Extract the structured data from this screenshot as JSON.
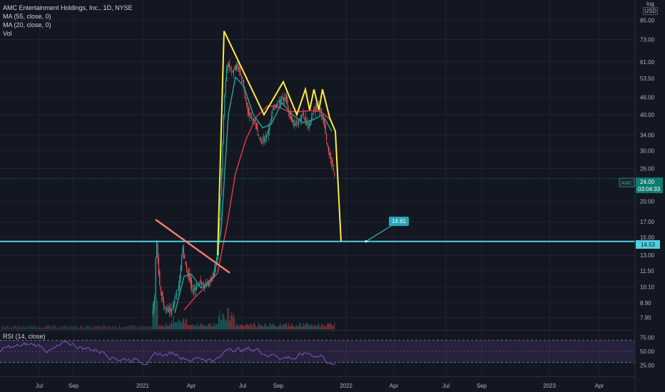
{
  "legend": {
    "title": "AMC Entertainment Holdings, Inc., 1D, NYSE",
    "ma55": "MA (55, close, 0)",
    "ma20": "MA (20, close, 0)",
    "vol": "Vol"
  },
  "rsi_label": "RSI (14, close)",
  "scale_mode": "log",
  "currency": "USD",
  "price_badge": {
    "symbol": "AMC",
    "price": "24.00",
    "countdown": "03:04:33"
  },
  "level_badge": {
    "price": "14.53"
  },
  "callout": {
    "text": "14.61"
  },
  "colors": {
    "background": "#131722",
    "grid": "#2a2e39",
    "pattern_line": "#ffeb3b",
    "trend_line": "#ef7a6a",
    "support_line": "#4dd0e1",
    "ma55": "#f23645",
    "ma20": "#26a69a",
    "rsi": "#7e57c2",
    "up": "#26a69a",
    "down": "#ef5350"
  },
  "chart_data": {
    "type": "candlestick",
    "y_scale": "log",
    "y_axis_ticks": [
      "85.00",
      "73.00",
      "61.00",
      "53.50",
      "46.00",
      "40.00",
      "34.00",
      "30.00",
      "26.00",
      "20.00",
      "17.00",
      "15.00",
      "13.00",
      "11.50",
      "10.10",
      "8.90",
      "7.90"
    ],
    "y_axis_tick_values": [
      85,
      73,
      61,
      53.5,
      46,
      40,
      34,
      30,
      26,
      20,
      17,
      15,
      13,
      11.5,
      10.1,
      8.9,
      7.9
    ],
    "x_axis_labels": [
      "Jul",
      "Sep",
      "2021",
      "Apr",
      "Jul",
      "Sep",
      "2022",
      "Apr",
      "Jul",
      "Sep",
      "2023",
      "Apr"
    ],
    "ylim": [
      7.2,
      100
    ],
    "current_price": 24.0,
    "horizontal_level": 14.53,
    "callout_value": 14.61,
    "price_path": [
      {
        "t": 214,
        "close": 8.2
      },
      {
        "t": 217,
        "close": 9.5
      },
      {
        "t": 219,
        "close": 15.5
      },
      {
        "t": 223,
        "close": 10.5
      },
      {
        "t": 230,
        "close": 8.5
      },
      {
        "t": 240,
        "close": 8.3
      },
      {
        "t": 250,
        "close": 10.0
      },
      {
        "t": 256,
        "close": 13.8
      },
      {
        "t": 262,
        "close": 11.5
      },
      {
        "t": 270,
        "close": 9.8
      },
      {
        "t": 280,
        "close": 10.5
      },
      {
        "t": 290,
        "close": 10.2
      },
      {
        "t": 298,
        "close": 11.0
      },
      {
        "t": 305,
        "close": 12.8
      },
      {
        "t": 309,
        "close": 20.0
      },
      {
        "t": 314,
        "close": 44.0
      },
      {
        "t": 318,
        "close": 60.0
      },
      {
        "t": 325,
        "close": 56.0
      },
      {
        "t": 332,
        "close": 60.0
      },
      {
        "t": 340,
        "close": 52.0
      },
      {
        "t": 348,
        "close": 40.0
      },
      {
        "t": 356,
        "close": 38.0
      },
      {
        "t": 366,
        "close": 32.0
      },
      {
        "t": 375,
        "close": 34.5
      },
      {
        "t": 383,
        "close": 42.0
      },
      {
        "t": 392,
        "close": 45.0
      },
      {
        "t": 400,
        "close": 46.0
      },
      {
        "t": 408,
        "close": 38.0
      },
      {
        "t": 416,
        "close": 37.0
      },
      {
        "t": 424,
        "close": 40.5
      },
      {
        "t": 432,
        "close": 36.0
      },
      {
        "t": 440,
        "close": 42.0
      },
      {
        "t": 448,
        "close": 43.0
      },
      {
        "t": 455,
        "close": 36.0
      },
      {
        "t": 460,
        "close": 30.0
      },
      {
        "t": 465,
        "close": 27.0
      },
      {
        "t": 470,
        "close": 24.0
      }
    ],
    "ma55_path": [
      {
        "t": 258,
        "v": 8.4
      },
      {
        "t": 275,
        "v": 9.4
      },
      {
        "t": 290,
        "v": 10.2
      },
      {
        "t": 305,
        "v": 11.3
      },
      {
        "t": 318,
        "v": 16.5
      },
      {
        "t": 330,
        "v": 25.0
      },
      {
        "t": 345,
        "v": 33.0
      },
      {
        "t": 360,
        "v": 39.5
      },
      {
        "t": 375,
        "v": 43.0
      },
      {
        "t": 390,
        "v": 42.5
      },
      {
        "t": 405,
        "v": 41.0
      },
      {
        "t": 420,
        "v": 41.0
      },
      {
        "t": 435,
        "v": 41.3
      },
      {
        "t": 450,
        "v": 41.0
      },
      {
        "t": 465,
        "v": 38.0
      }
    ],
    "ma20_path": [
      {
        "t": 245,
        "v": 8.2
      },
      {
        "t": 258,
        "v": 11.0
      },
      {
        "t": 268,
        "v": 11.2
      },
      {
        "t": 282,
        "v": 10.0
      },
      {
        "t": 300,
        "v": 11.0
      },
      {
        "t": 310,
        "v": 16.0
      },
      {
        "t": 320,
        "v": 40.0
      },
      {
        "t": 330,
        "v": 54.0
      },
      {
        "t": 342,
        "v": 50.0
      },
      {
        "t": 355,
        "v": 40.0
      },
      {
        "t": 368,
        "v": 36.0
      },
      {
        "t": 380,
        "v": 37.0
      },
      {
        "t": 395,
        "v": 44.0
      },
      {
        "t": 410,
        "v": 40.0
      },
      {
        "t": 425,
        "v": 37.5
      },
      {
        "t": 440,
        "v": 38.5
      },
      {
        "t": 452,
        "v": 40.0
      },
      {
        "t": 465,
        "v": 35.0
      }
    ],
    "pattern_line": [
      {
        "t": 305,
        "v": 13.0
      },
      {
        "t": 314,
        "v": 78.0
      },
      {
        "t": 370,
        "v": 40.0
      },
      {
        "t": 397,
        "v": 52.0
      },
      {
        "t": 416,
        "v": 40.0
      },
      {
        "t": 428,
        "v": 49.0
      },
      {
        "t": 434,
        "v": 41.5
      },
      {
        "t": 440,
        "v": 49.0
      },
      {
        "t": 447,
        "v": 41.5
      },
      {
        "t": 452,
        "v": 49.0
      },
      {
        "t": 462,
        "v": 39.0
      },
      {
        "t": 470,
        "v": 35.0
      },
      {
        "t": 478,
        "v": 14.53
      }
    ],
    "trend_line": [
      {
        "t": 218,
        "v": 17.3
      },
      {
        "t": 322,
        "v": 11.3
      }
    ],
    "rsi": {
      "levels": [
        "75.00",
        "50.00",
        "25.00"
      ],
      "level_values": [
        75,
        50,
        25
      ],
      "overbought": 70,
      "oversold": 30
    }
  }
}
